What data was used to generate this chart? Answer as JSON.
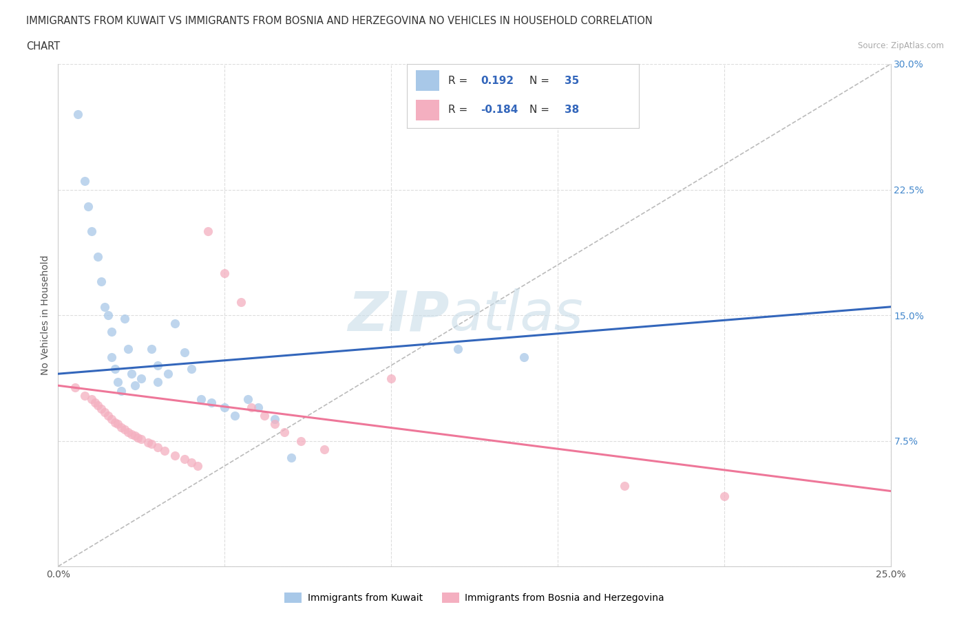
{
  "title_line1": "IMMIGRANTS FROM KUWAIT VS IMMIGRANTS FROM BOSNIA AND HERZEGOVINA NO VEHICLES IN HOUSEHOLD CORRELATION",
  "title_line2": "CHART",
  "source": "Source: ZipAtlas.com",
  "ylabel": "No Vehicles in Household",
  "xlim": [
    0.0,
    0.25
  ],
  "ylim": [
    0.0,
    0.3
  ],
  "xticks": [
    0.0,
    0.05,
    0.1,
    0.15,
    0.2,
    0.25
  ],
  "yticks": [
    0.0,
    0.075,
    0.15,
    0.225,
    0.3
  ],
  "xticklabels": [
    "0.0%",
    "",
    "",
    "",
    "",
    "25.0%"
  ],
  "yticklabels": [
    "",
    "7.5%",
    "15.0%",
    "22.5%",
    "30.0%"
  ],
  "r_kuwait": "0.192",
  "n_kuwait": "35",
  "r_bosnia": "-0.184",
  "n_bosnia": "38",
  "color_kuwait": "#a8c8e8",
  "color_bosnia": "#f4afc0",
  "line_color_kuwait": "#3366bb",
  "line_color_bosnia": "#ee7799",
  "dash_color": "#bbbbbb",
  "watermark_color": "#c8dce8",
  "kuwait_line_x0": 0.0,
  "kuwait_line_y0": 0.115,
  "kuwait_line_x1": 0.25,
  "kuwait_line_y1": 0.155,
  "bosnia_line_x0": 0.0,
  "bosnia_line_y0": 0.108,
  "bosnia_line_x1": 0.25,
  "bosnia_line_y1": 0.045,
  "kuwait_x": [
    0.006,
    0.008,
    0.009,
    0.01,
    0.012,
    0.013,
    0.014,
    0.015,
    0.016,
    0.016,
    0.017,
    0.018,
    0.019,
    0.02,
    0.021,
    0.022,
    0.023,
    0.025,
    0.028,
    0.03,
    0.03,
    0.033,
    0.035,
    0.038,
    0.04,
    0.043,
    0.046,
    0.05,
    0.053,
    0.057,
    0.06,
    0.065,
    0.07,
    0.12,
    0.14
  ],
  "kuwait_y": [
    0.27,
    0.23,
    0.215,
    0.2,
    0.185,
    0.17,
    0.155,
    0.15,
    0.14,
    0.125,
    0.118,
    0.11,
    0.105,
    0.148,
    0.13,
    0.115,
    0.108,
    0.112,
    0.13,
    0.12,
    0.11,
    0.115,
    0.145,
    0.128,
    0.118,
    0.1,
    0.098,
    0.095,
    0.09,
    0.1,
    0.095,
    0.088,
    0.065,
    0.13,
    0.125
  ],
  "bosnia_x": [
    0.005,
    0.008,
    0.01,
    0.011,
    0.012,
    0.013,
    0.014,
    0.015,
    0.016,
    0.017,
    0.018,
    0.019,
    0.02,
    0.021,
    0.022,
    0.023,
    0.024,
    0.025,
    0.027,
    0.028,
    0.03,
    0.032,
    0.035,
    0.038,
    0.04,
    0.042,
    0.045,
    0.05,
    0.055,
    0.058,
    0.062,
    0.065,
    0.068,
    0.073,
    0.08,
    0.1,
    0.17,
    0.2
  ],
  "bosnia_y": [
    0.107,
    0.102,
    0.1,
    0.098,
    0.096,
    0.094,
    0.092,
    0.09,
    0.088,
    0.086,
    0.085,
    0.083,
    0.082,
    0.08,
    0.079,
    0.078,
    0.077,
    0.076,
    0.074,
    0.073,
    0.071,
    0.069,
    0.066,
    0.064,
    0.062,
    0.06,
    0.2,
    0.175,
    0.158,
    0.095,
    0.09,
    0.085,
    0.08,
    0.075,
    0.07,
    0.112,
    0.048,
    0.042
  ]
}
